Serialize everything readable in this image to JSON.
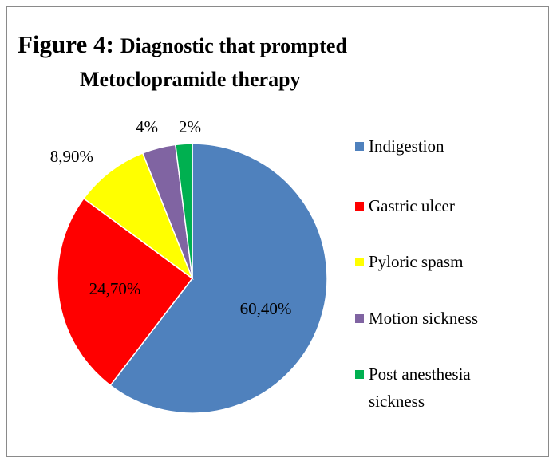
{
  "chart_data": {
    "type": "pie",
    "title_prefix": "Figure 4:",
    "title_line1": "Diagnostic that prompted",
    "title_line2": "Metoclopramide therapy",
    "slices": [
      {
        "label": "Indigestion",
        "value": 60.4,
        "display": "60,40%",
        "color": "#4f81bd"
      },
      {
        "label": "Gastric ulcer",
        "value": 24.7,
        "display": "24,70%",
        "color": "#ff0000"
      },
      {
        "label": "Pyloric spasm",
        "value": 8.9,
        "display": "8,90%",
        "color": "#ffff00"
      },
      {
        "label": "Motion sickness",
        "value": 4,
        "display": "4%",
        "color": "#8064a2"
      },
      {
        "label": "Post anesthesia sickness",
        "legend_lines": [
          "Post anesthesia",
          "sickness"
        ],
        "value": 2,
        "display": "2%",
        "color": "#00b050"
      }
    ],
    "legend_position": "right"
  }
}
